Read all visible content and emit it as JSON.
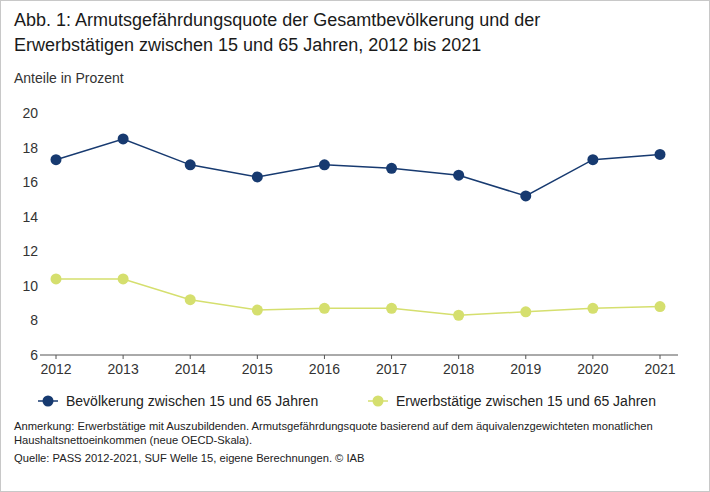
{
  "chart_data": {
    "type": "line",
    "title": "Abb. 1: Armutsgefährdungsquote der Gesamtbevölkerung und der Erwerbstätigen zwischen 15 und 65 Jahren, 2012 bis 2021",
    "y_label": "Anteile in Prozent",
    "x": [
      2012,
      2013,
      2014,
      2015,
      2016,
      2017,
      2018,
      2019,
      2020,
      2021
    ],
    "series": [
      {
        "name": "Bevölkerung zwischen 15 und 65 Jahren",
        "color": "#173a70",
        "marker": "circle",
        "values": [
          17.3,
          18.5,
          17.0,
          16.3,
          17.0,
          16.8,
          16.4,
          15.2,
          17.3,
          17.6
        ]
      },
      {
        "name": "Erwerbstätige zwischen 15 und 65 Jahren",
        "color": "#d5df6e",
        "marker": "circle",
        "values": [
          10.4,
          10.4,
          9.2,
          8.6,
          8.7,
          8.7,
          8.3,
          8.5,
          8.7,
          8.8
        ]
      }
    ],
    "xlim": [
      2012,
      2021
    ],
    "xticks": [
      2012,
      2013,
      2014,
      2015,
      2016,
      2017,
      2018,
      2019,
      2020,
      2021
    ],
    "ylim": [
      6,
      20
    ],
    "yticks": [
      6,
      8,
      10,
      12,
      14,
      16,
      18,
      20
    ],
    "grid": false,
    "legend": "bottom",
    "annotations": [
      "Anmerkung: Erwerbstätige mit Auszubildenden. Armutsgefährdungsquote basierend auf dem äquivalenzgewichteten monatlichen Haushaltsnettoeinkommen (neue OECD-Skala).",
      "Quelle: PASS 2012-2021, SUF Welle 15, eigene Berechnungen. © IAB"
    ]
  }
}
